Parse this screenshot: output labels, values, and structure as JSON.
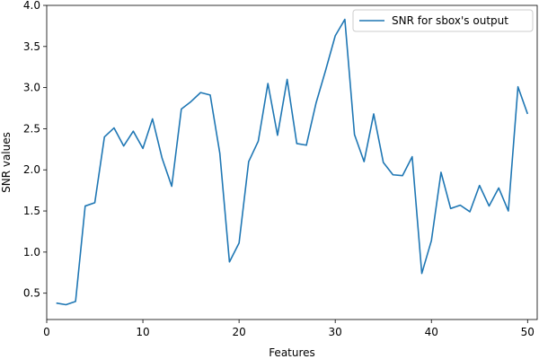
{
  "chart_data": {
    "type": "line",
    "title": "",
    "xlabel": "Features",
    "ylabel": "SNR values",
    "xlim": [
      0,
      51
    ],
    "ylim": [
      0.18,
      4.0
    ],
    "xticks": [
      0,
      10,
      20,
      30,
      40,
      50
    ],
    "yticks": [
      0.5,
      1.0,
      1.5,
      2.0,
      2.5,
      3.0,
      3.5,
      4.0
    ],
    "xtick_labels": [
      "0",
      "10",
      "20",
      "30",
      "40",
      "50"
    ],
    "ytick_labels": [
      "0.5",
      "1.0",
      "1.5",
      "2.0",
      "2.5",
      "3.0",
      "3.5",
      "4.0"
    ],
    "grid": false,
    "legend_position": "upper right",
    "series": [
      {
        "name": "SNR for sbox's output",
        "color": "#1f77b4",
        "x": [
          1,
          2,
          3,
          4,
          5,
          6,
          7,
          8,
          9,
          10,
          11,
          12,
          13,
          14,
          15,
          16,
          17,
          18,
          19,
          20,
          21,
          22,
          23,
          24,
          25,
          26,
          27,
          28,
          29,
          30,
          31,
          32,
          33,
          34,
          35,
          36,
          37,
          38,
          39,
          40,
          41,
          42,
          43,
          44,
          45,
          46,
          47,
          48,
          49,
          50
        ],
        "y": [
          0.38,
          0.36,
          0.4,
          1.56,
          1.6,
          2.4,
          2.51,
          2.29,
          2.47,
          2.26,
          2.62,
          2.14,
          1.8,
          2.74,
          2.83,
          2.94,
          2.91,
          2.2,
          0.88,
          1.11,
          2.1,
          2.35,
          3.05,
          2.42,
          3.1,
          2.32,
          2.3,
          2.81,
          3.21,
          3.63,
          3.83,
          2.43,
          2.1,
          2.68,
          2.09,
          1.94,
          1.93,
          2.16,
          0.74,
          1.14,
          1.97,
          1.53,
          1.57,
          1.49,
          1.81,
          1.56,
          1.78,
          1.5,
          3.01,
          2.68
        ]
      }
    ]
  }
}
